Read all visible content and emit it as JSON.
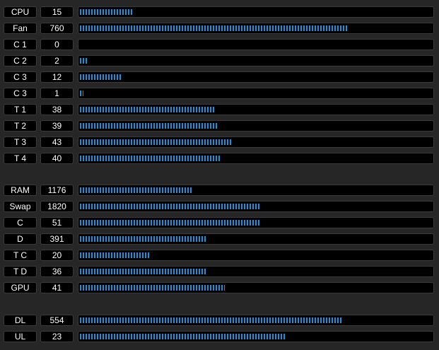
{
  "accent_color": "#1e90d6",
  "groups": [
    {
      "rows": [
        {
          "label": "CPU",
          "value": "15",
          "level": 0.15
        },
        {
          "label": "Fan",
          "value": "760",
          "level": 0.76
        },
        {
          "label": "C 1",
          "value": "0",
          "level": 0.0
        },
        {
          "label": "C 2",
          "value": "2",
          "level": 0.02
        },
        {
          "label": "C 3",
          "value": "12",
          "level": 0.12
        },
        {
          "label": "C 3",
          "value": "1",
          "level": 0.01
        },
        {
          "label": "T 1",
          "value": "38",
          "level": 0.38
        },
        {
          "label": "T 2",
          "value": "39",
          "level": 0.39
        },
        {
          "label": "T 3",
          "value": "43",
          "level": 0.43
        },
        {
          "label": "T 4",
          "value": "40",
          "level": 0.4
        }
      ]
    },
    {
      "rows": [
        {
          "label": "RAM",
          "value": "1176",
          "level": 0.32
        },
        {
          "label": "Swap",
          "value": "1820",
          "level": 0.51
        },
        {
          "label": "C",
          "value": "51",
          "level": 0.51
        },
        {
          "label": "D",
          "value": "391",
          "level": 0.36
        },
        {
          "label": "T C",
          "value": "20",
          "level": 0.2
        },
        {
          "label": "T D",
          "value": "36",
          "level": 0.36
        },
        {
          "label": "GPU",
          "value": "41",
          "level": 0.41
        }
      ]
    },
    {
      "rows": [
        {
          "label": "DL",
          "value": "554",
          "level": 0.74
        },
        {
          "label": "UL",
          "value": "23",
          "level": 0.58
        }
      ]
    }
  ]
}
